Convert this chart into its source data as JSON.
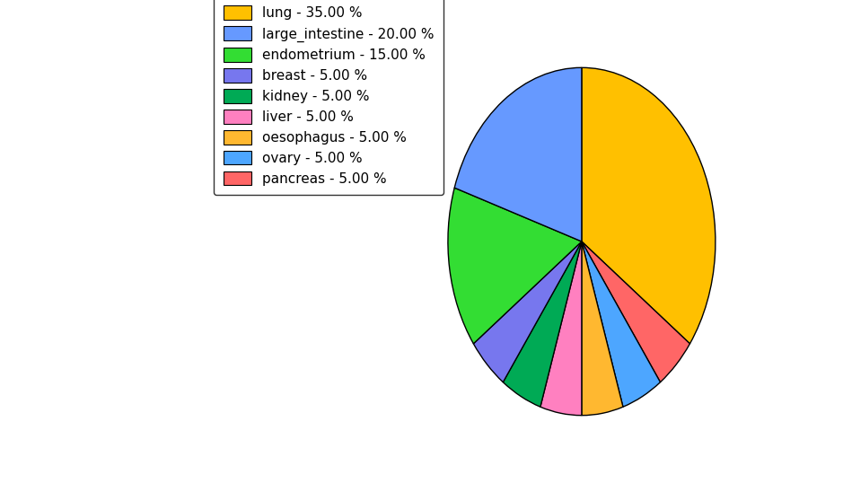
{
  "labels": [
    "lung",
    "pancreas",
    "ovary",
    "oesophagus",
    "liver",
    "kidney",
    "breast",
    "endometrium",
    "large_intestine"
  ],
  "values": [
    35.0,
    5.0,
    5.0,
    5.0,
    5.0,
    5.0,
    5.0,
    15.0,
    20.0
  ],
  "colors": [
    "#FFC000",
    "#FF6666",
    "#4DA6FF",
    "#FFB830",
    "#FF80C0",
    "#00AA55",
    "#7777EE",
    "#33DD33",
    "#6699FF"
  ],
  "legend_labels": [
    "lung - 35.00 %",
    "large_intestine - 20.00 %",
    "endometrium - 15.00 %",
    "breast - 5.00 %",
    "kidney - 5.00 %",
    "liver - 5.00 %",
    "oesophagus - 5.00 %",
    "ovary - 5.00 %",
    "pancreas - 5.00 %"
  ],
  "legend_colors": [
    "#FFC000",
    "#6699FF",
    "#33DD33",
    "#7777EE",
    "#00AA55",
    "#FF80C0",
    "#FFB830",
    "#4DA6FF",
    "#FF6666"
  ],
  "startangle": 90,
  "figsize": [
    9.39,
    5.38
  ],
  "dpi": 100
}
